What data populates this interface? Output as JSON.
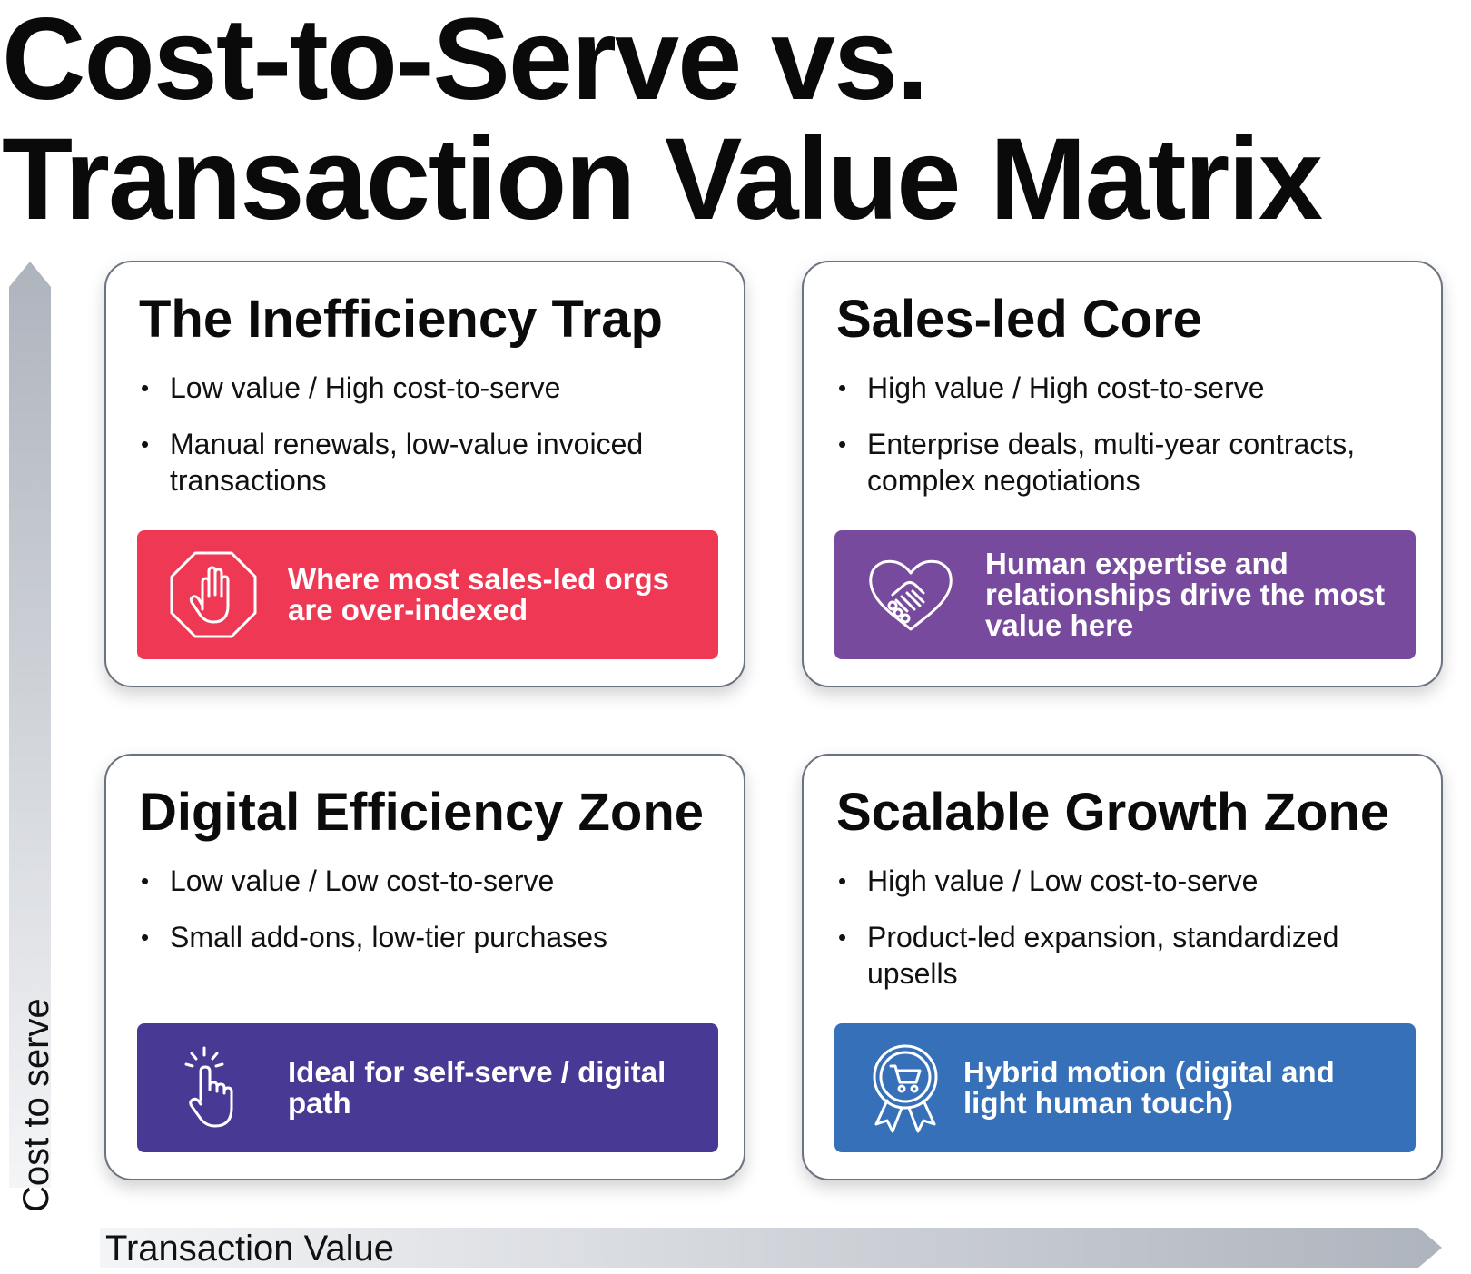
{
  "title": {
    "line1": "Cost-to-Serve vs.",
    "line2": "Transaction Value Matrix"
  },
  "axes": {
    "y_label": "Cost to serve",
    "x_label": "Transaction Value"
  },
  "quadrants": {
    "top_left": {
      "title": "The Inefficiency Trap",
      "bullets": [
        "Low value / High cost-to-serve",
        "Manual renewals, low-value invoiced transactions"
      ],
      "callout": "Where most sales-led orgs are over-indexed",
      "callout_color": "#ef3954",
      "icon": "stop-hand-icon"
    },
    "top_right": {
      "title": "Sales-led Core",
      "bullets": [
        "High value / High cost-to-serve",
        "Enterprise deals, multi-year contracts, complex negotiations"
      ],
      "callout": "Human expertise and relationships drive the most value here",
      "callout_color": "#784a9d",
      "icon": "handshake-heart-icon"
    },
    "bottom_left": {
      "title": "Digital Efficiency Zone",
      "bullets": [
        "Low value / Low cost-to-serve",
        "Small add-ons, low-tier purchases"
      ],
      "callout": "Ideal for self-serve / digital path",
      "callout_color": "#483994",
      "icon": "pointer-click-icon"
    },
    "bottom_right": {
      "title": "Scalable Growth Zone",
      "bullets": [
        "High value / Low cost-to-serve",
        "Product-led expansion, standardized upsells"
      ],
      "callout": "Hybrid motion (digital and light human touch)",
      "callout_color": "#3570b8",
      "icon": "cart-award-icon"
    }
  }
}
